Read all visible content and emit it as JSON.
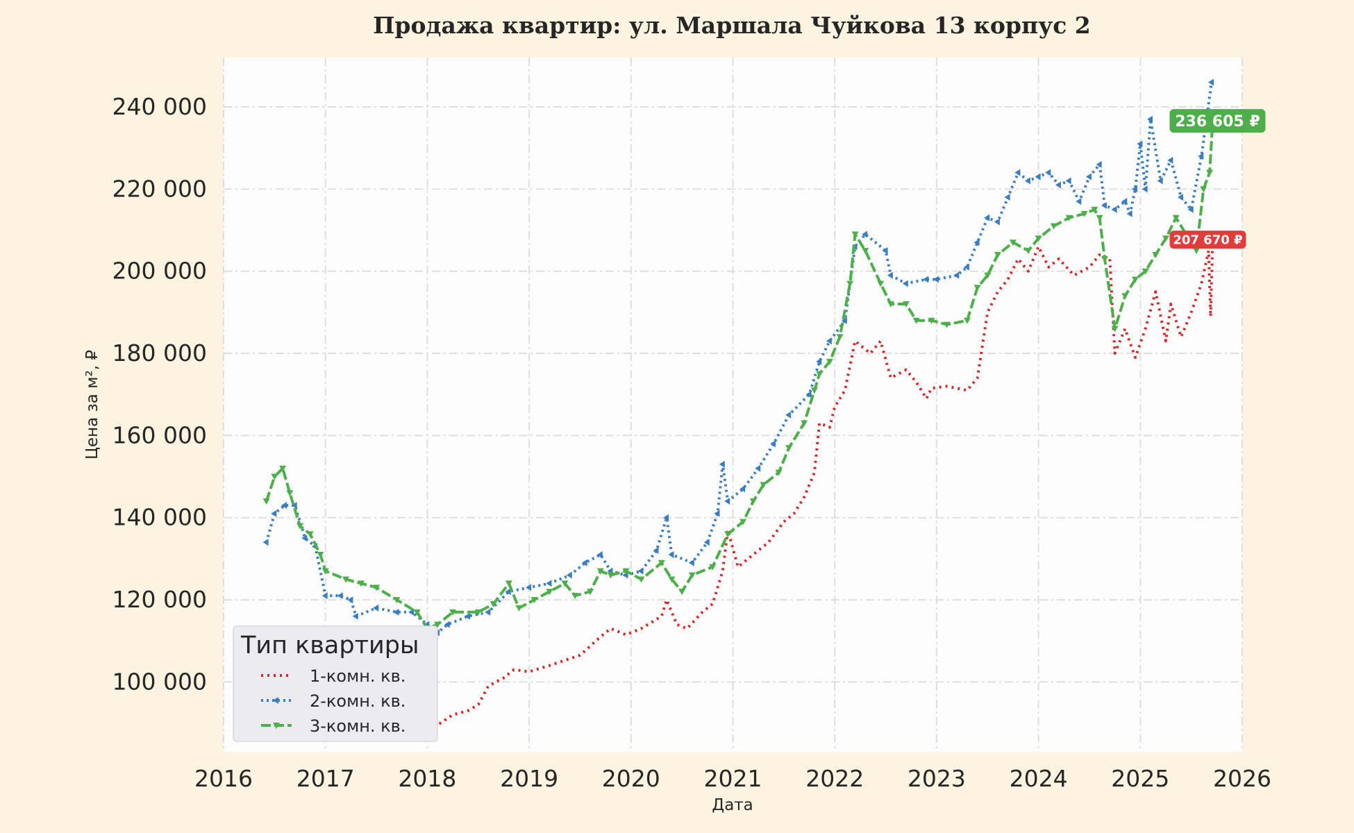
{
  "chart_data": {
    "type": "line",
    "title": "Продажа квартир: ул. Маршала Чуйкова 13 корпус 2",
    "xlabel": "Дата",
    "ylabel": "Цена за м², ₽",
    "xlim": [
      2016.0,
      2026.0
    ],
    "ylim": [
      83000,
      252000
    ],
    "x_ticks": [
      2016,
      2017,
      2018,
      2019,
      2020,
      2021,
      2022,
      2023,
      2024,
      2025,
      2026
    ],
    "x_tick_labels": [
      "2016",
      "2017",
      "2018",
      "2019",
      "2020",
      "2021",
      "2022",
      "2023",
      "2024",
      "2025",
      "2026"
    ],
    "y_ticks": [
      100000,
      120000,
      140000,
      160000,
      180000,
      200000,
      220000,
      240000
    ],
    "y_tick_labels": [
      "100 000",
      "120 000",
      "140 000",
      "160 000",
      "180 000",
      "200 000",
      "220 000",
      "240 000"
    ],
    "grid": true,
    "legend": {
      "title": "Тип квартиры",
      "position": "lower-left"
    },
    "series": [
      {
        "name": "1-комн. кв.",
        "color": "#d62728",
        "style": "dotted",
        "points": [
          [
            2016.4,
            98000
          ],
          [
            2016.55,
            103000
          ],
          [
            2016.8,
            100000
          ],
          [
            2017.0,
            97000
          ],
          [
            2017.3,
            95000
          ],
          [
            2017.6,
            96000
          ],
          [
            2017.8,
            94000
          ],
          [
            2018.0,
            91000
          ],
          [
            2018.1,
            89500
          ],
          [
            2018.25,
            92000
          ],
          [
            2018.4,
            93000
          ],
          [
            2018.5,
            94500
          ],
          [
            2018.6,
            99000
          ],
          [
            2018.75,
            101000
          ],
          [
            2018.85,
            103000
          ],
          [
            2019.0,
            102500
          ],
          [
            2019.2,
            104000
          ],
          [
            2019.5,
            106500
          ],
          [
            2019.7,
            111000
          ],
          [
            2019.8,
            113000
          ],
          [
            2019.95,
            111500
          ],
          [
            2020.1,
            113000
          ],
          [
            2020.3,
            116000
          ],
          [
            2020.35,
            120000
          ],
          [
            2020.45,
            114000
          ],
          [
            2020.55,
            113000
          ],
          [
            2020.7,
            117000
          ],
          [
            2020.8,
            119000
          ],
          [
            2020.9,
            127000
          ],
          [
            2020.95,
            137000
          ],
          [
            2021.05,
            128000
          ],
          [
            2021.2,
            131000
          ],
          [
            2021.35,
            134000
          ],
          [
            2021.5,
            139000
          ],
          [
            2021.6,
            141000
          ],
          [
            2021.7,
            145000
          ],
          [
            2021.8,
            151000
          ],
          [
            2021.85,
            163000
          ],
          [
            2021.95,
            162000
          ],
          [
            2022.0,
            167000
          ],
          [
            2022.1,
            171000
          ],
          [
            2022.15,
            177000
          ],
          [
            2022.2,
            183000
          ],
          [
            2022.35,
            180000
          ],
          [
            2022.45,
            183000
          ],
          [
            2022.55,
            174000
          ],
          [
            2022.7,
            176000
          ],
          [
            2022.8,
            173000
          ],
          [
            2022.9,
            169000
          ],
          [
            2022.95,
            171500
          ],
          [
            2023.1,
            172000
          ],
          [
            2023.3,
            171000
          ],
          [
            2023.4,
            174000
          ],
          [
            2023.5,
            190000
          ],
          [
            2023.6,
            195000
          ],
          [
            2023.7,
            198000
          ],
          [
            2023.8,
            203000
          ],
          [
            2023.9,
            200000
          ],
          [
            2024.0,
            206000
          ],
          [
            2024.1,
            201000
          ],
          [
            2024.2,
            203000
          ],
          [
            2024.35,
            199000
          ],
          [
            2024.5,
            201000
          ],
          [
            2024.6,
            204000
          ],
          [
            2024.7,
            203000
          ],
          [
            2024.75,
            180000
          ],
          [
            2024.85,
            186000
          ],
          [
            2024.95,
            179000
          ],
          [
            2025.05,
            186000
          ],
          [
            2025.15,
            195000
          ],
          [
            2025.25,
            183000
          ],
          [
            2025.3,
            192000
          ],
          [
            2025.4,
            184000
          ],
          [
            2025.5,
            190000
          ],
          [
            2025.6,
            197000
          ],
          [
            2025.67,
            205000
          ],
          [
            2025.69,
            189000
          ],
          [
            2025.71,
            207670
          ]
        ]
      },
      {
        "name": "2-комн. кв.",
        "color": "#3a7ebf",
        "style": "dotted-markers",
        "points": [
          [
            2016.42,
            134000
          ],
          [
            2016.5,
            141000
          ],
          [
            2016.6,
            143000
          ],
          [
            2016.7,
            143000
          ],
          [
            2016.8,
            135000
          ],
          [
            2016.9,
            133000
          ],
          [
            2017.0,
            121000
          ],
          [
            2017.15,
            121000
          ],
          [
            2017.25,
            120000
          ],
          [
            2017.3,
            116000
          ],
          [
            2017.5,
            118000
          ],
          [
            2017.7,
            117000
          ],
          [
            2017.85,
            117000
          ],
          [
            2018.0,
            114000
          ],
          [
            2018.1,
            112000
          ],
          [
            2018.2,
            114000
          ],
          [
            2018.4,
            116000
          ],
          [
            2018.6,
            117000
          ],
          [
            2018.8,
            122000
          ],
          [
            2019.0,
            123000
          ],
          [
            2019.2,
            124000
          ],
          [
            2019.4,
            126000
          ],
          [
            2019.55,
            129000
          ],
          [
            2019.7,
            131000
          ],
          [
            2019.8,
            127000
          ],
          [
            2019.95,
            126000
          ],
          [
            2020.1,
            127000
          ],
          [
            2020.25,
            132000
          ],
          [
            2020.35,
            140000
          ],
          [
            2020.4,
            131000
          ],
          [
            2020.6,
            129000
          ],
          [
            2020.75,
            134000
          ],
          [
            2020.85,
            141000
          ],
          [
            2020.9,
            153000
          ],
          [
            2020.95,
            144000
          ],
          [
            2021.1,
            147000
          ],
          [
            2021.25,
            152000
          ],
          [
            2021.4,
            158000
          ],
          [
            2021.55,
            165000
          ],
          [
            2021.75,
            170000
          ],
          [
            2021.85,
            178000
          ],
          [
            2021.95,
            183000
          ],
          [
            2022.1,
            188000
          ],
          [
            2022.2,
            206000
          ],
          [
            2022.3,
            209000
          ],
          [
            2022.5,
            205000
          ],
          [
            2022.55,
            199000
          ],
          [
            2022.7,
            197000
          ],
          [
            2022.9,
            198000
          ],
          [
            2023.0,
            198000
          ],
          [
            2023.2,
            199000
          ],
          [
            2023.3,
            201000
          ],
          [
            2023.4,
            207000
          ],
          [
            2023.5,
            213000
          ],
          [
            2023.6,
            212000
          ],
          [
            2023.7,
            218000
          ],
          [
            2023.8,
            224000
          ],
          [
            2023.9,
            222000
          ],
          [
            2024.0,
            223000
          ],
          [
            2024.1,
            224000
          ],
          [
            2024.2,
            221000
          ],
          [
            2024.3,
            222000
          ],
          [
            2024.4,
            217000
          ],
          [
            2024.5,
            223000
          ],
          [
            2024.6,
            226000
          ],
          [
            2024.65,
            216000
          ],
          [
            2024.75,
            215000
          ],
          [
            2024.85,
            217000
          ],
          [
            2024.9,
            214000
          ],
          [
            2024.95,
            220000
          ],
          [
            2025.0,
            231000
          ],
          [
            2025.05,
            220000
          ],
          [
            2025.1,
            237000
          ],
          [
            2025.2,
            222000
          ],
          [
            2025.3,
            227000
          ],
          [
            2025.4,
            218000
          ],
          [
            2025.5,
            215000
          ],
          [
            2025.6,
            228000
          ],
          [
            2025.66,
            239000
          ],
          [
            2025.7,
            246000
          ]
        ]
      },
      {
        "name": "3-комн. кв.",
        "color": "#4daf4a",
        "style": "dashed-markers",
        "points": [
          [
            2016.42,
            144000
          ],
          [
            2016.5,
            150000
          ],
          [
            2016.58,
            152000
          ],
          [
            2016.65,
            146000
          ],
          [
            2016.75,
            138000
          ],
          [
            2016.85,
            136000
          ],
          [
            2016.95,
            131000
          ],
          [
            2017.0,
            127000
          ],
          [
            2017.2,
            125000
          ],
          [
            2017.35,
            124000
          ],
          [
            2017.5,
            123000
          ],
          [
            2017.7,
            120000
          ],
          [
            2017.9,
            117000
          ],
          [
            2018.0,
            113000
          ],
          [
            2018.1,
            114000
          ],
          [
            2018.25,
            117000
          ],
          [
            2018.5,
            117000
          ],
          [
            2018.65,
            119000
          ],
          [
            2018.8,
            124000
          ],
          [
            2018.9,
            118000
          ],
          [
            2019.05,
            120000
          ],
          [
            2019.2,
            122000
          ],
          [
            2019.35,
            124000
          ],
          [
            2019.45,
            121000
          ],
          [
            2019.6,
            122000
          ],
          [
            2019.7,
            127000
          ],
          [
            2019.8,
            126000
          ],
          [
            2019.95,
            127000
          ],
          [
            2020.1,
            125000
          ],
          [
            2020.3,
            129000
          ],
          [
            2020.4,
            125000
          ],
          [
            2020.5,
            122000
          ],
          [
            2020.6,
            126000
          ],
          [
            2020.8,
            128000
          ],
          [
            2020.95,
            136000
          ],
          [
            2021.1,
            139000
          ],
          [
            2021.2,
            144000
          ],
          [
            2021.3,
            148000
          ],
          [
            2021.45,
            151000
          ],
          [
            2021.55,
            157000
          ],
          [
            2021.7,
            163000
          ],
          [
            2021.8,
            171000
          ],
          [
            2021.85,
            175000
          ],
          [
            2021.95,
            178000
          ],
          [
            2022.05,
            184000
          ],
          [
            2022.15,
            197000
          ],
          [
            2022.2,
            209000
          ],
          [
            2022.3,
            205000
          ],
          [
            2022.45,
            197000
          ],
          [
            2022.55,
            192000
          ],
          [
            2022.7,
            192000
          ],
          [
            2022.8,
            188000
          ],
          [
            2022.95,
            188000
          ],
          [
            2023.1,
            187000
          ],
          [
            2023.3,
            188000
          ],
          [
            2023.4,
            196000
          ],
          [
            2023.5,
            199000
          ],
          [
            2023.6,
            204000
          ],
          [
            2023.75,
            207000
          ],
          [
            2023.9,
            205000
          ],
          [
            2024.0,
            208000
          ],
          [
            2024.15,
            211000
          ],
          [
            2024.3,
            213000
          ],
          [
            2024.45,
            214000
          ],
          [
            2024.55,
            215000
          ],
          [
            2024.6,
            213000
          ],
          [
            2024.65,
            203000
          ],
          [
            2024.75,
            186000
          ],
          [
            2024.85,
            194000
          ],
          [
            2024.95,
            198000
          ],
          [
            2025.05,
            200000
          ],
          [
            2025.15,
            204000
          ],
          [
            2025.25,
            208000
          ],
          [
            2025.35,
            213000
          ],
          [
            2025.45,
            209000
          ],
          [
            2025.55,
            205000
          ],
          [
            2025.62,
            220000
          ],
          [
            2025.68,
            224000
          ],
          [
            2025.71,
            236605
          ]
        ]
      }
    ],
    "annotations": [
      {
        "series": "3-комн. кв.",
        "x": 2025.71,
        "y": 236605,
        "text": "236 605 ₽",
        "color": "#4daf4a"
      },
      {
        "series": "1-комн. кв.",
        "x": 2025.71,
        "y": 207670,
        "text": "207 670 ₽",
        "color": "#e03c3c"
      }
    ]
  }
}
